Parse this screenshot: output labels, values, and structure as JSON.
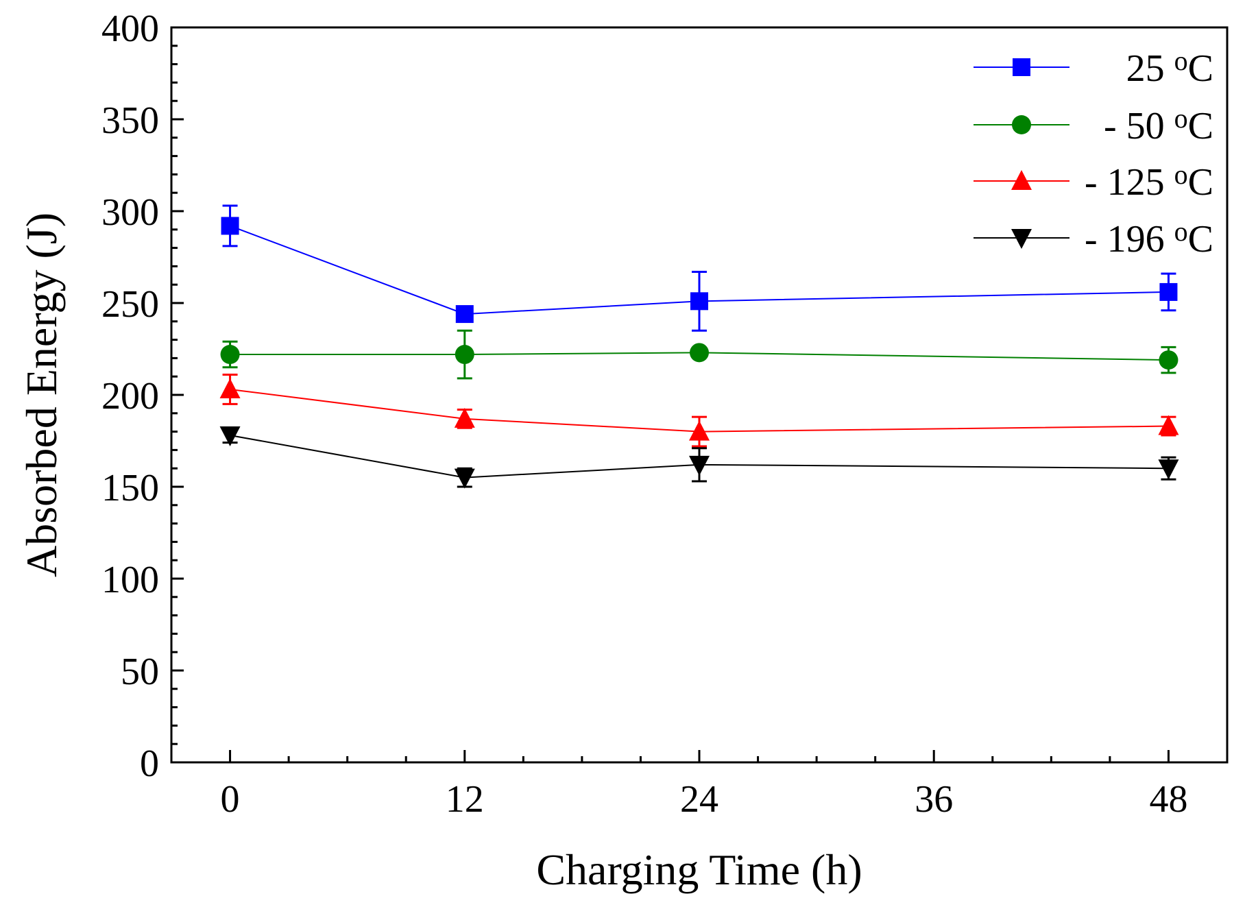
{
  "chart_data": {
    "type": "line",
    "title": "",
    "xlabel": "Charging Time (h)",
    "ylabel": "Absorbed Energy (J)",
    "x": [
      0,
      12,
      24,
      48
    ],
    "xlim": [
      -3,
      51
    ],
    "ylim": [
      0,
      400
    ],
    "xticks": [
      0,
      12,
      24,
      36,
      48
    ],
    "yticks": [
      0,
      50,
      100,
      150,
      200,
      250,
      300,
      350,
      400
    ],
    "x_minor_step": 3,
    "y_minor_step": 10,
    "grid": false,
    "legend_position": "top-right",
    "series": [
      {
        "name": "25",
        "unit": "oC",
        "label": "25 oC",
        "color": "#0000ff",
        "marker": "square",
        "values": [
          292,
          244,
          251,
          256
        ],
        "errors": [
          11,
          2,
          16,
          10
        ]
      },
      {
        "name": "- 50",
        "unit": "oC",
        "label": "- 50 oC",
        "color": "#008000",
        "marker": "circle",
        "values": [
          222,
          222,
          223,
          219
        ],
        "errors": [
          7,
          13,
          2,
          7
        ]
      },
      {
        "name": "- 125",
        "unit": "oC",
        "label": "- 125 oC",
        "color": "#ff0000",
        "marker": "triangle-up",
        "values": [
          203,
          187,
          180,
          183
        ],
        "errors": [
          8,
          5,
          8,
          5
        ]
      },
      {
        "name": "- 196",
        "unit": "oC",
        "label": "- 196 oC",
        "color": "#000000",
        "marker": "triangle-down",
        "values": [
          178,
          155,
          162,
          160
        ],
        "errors": [
          4,
          5,
          9,
          6
        ]
      }
    ]
  }
}
